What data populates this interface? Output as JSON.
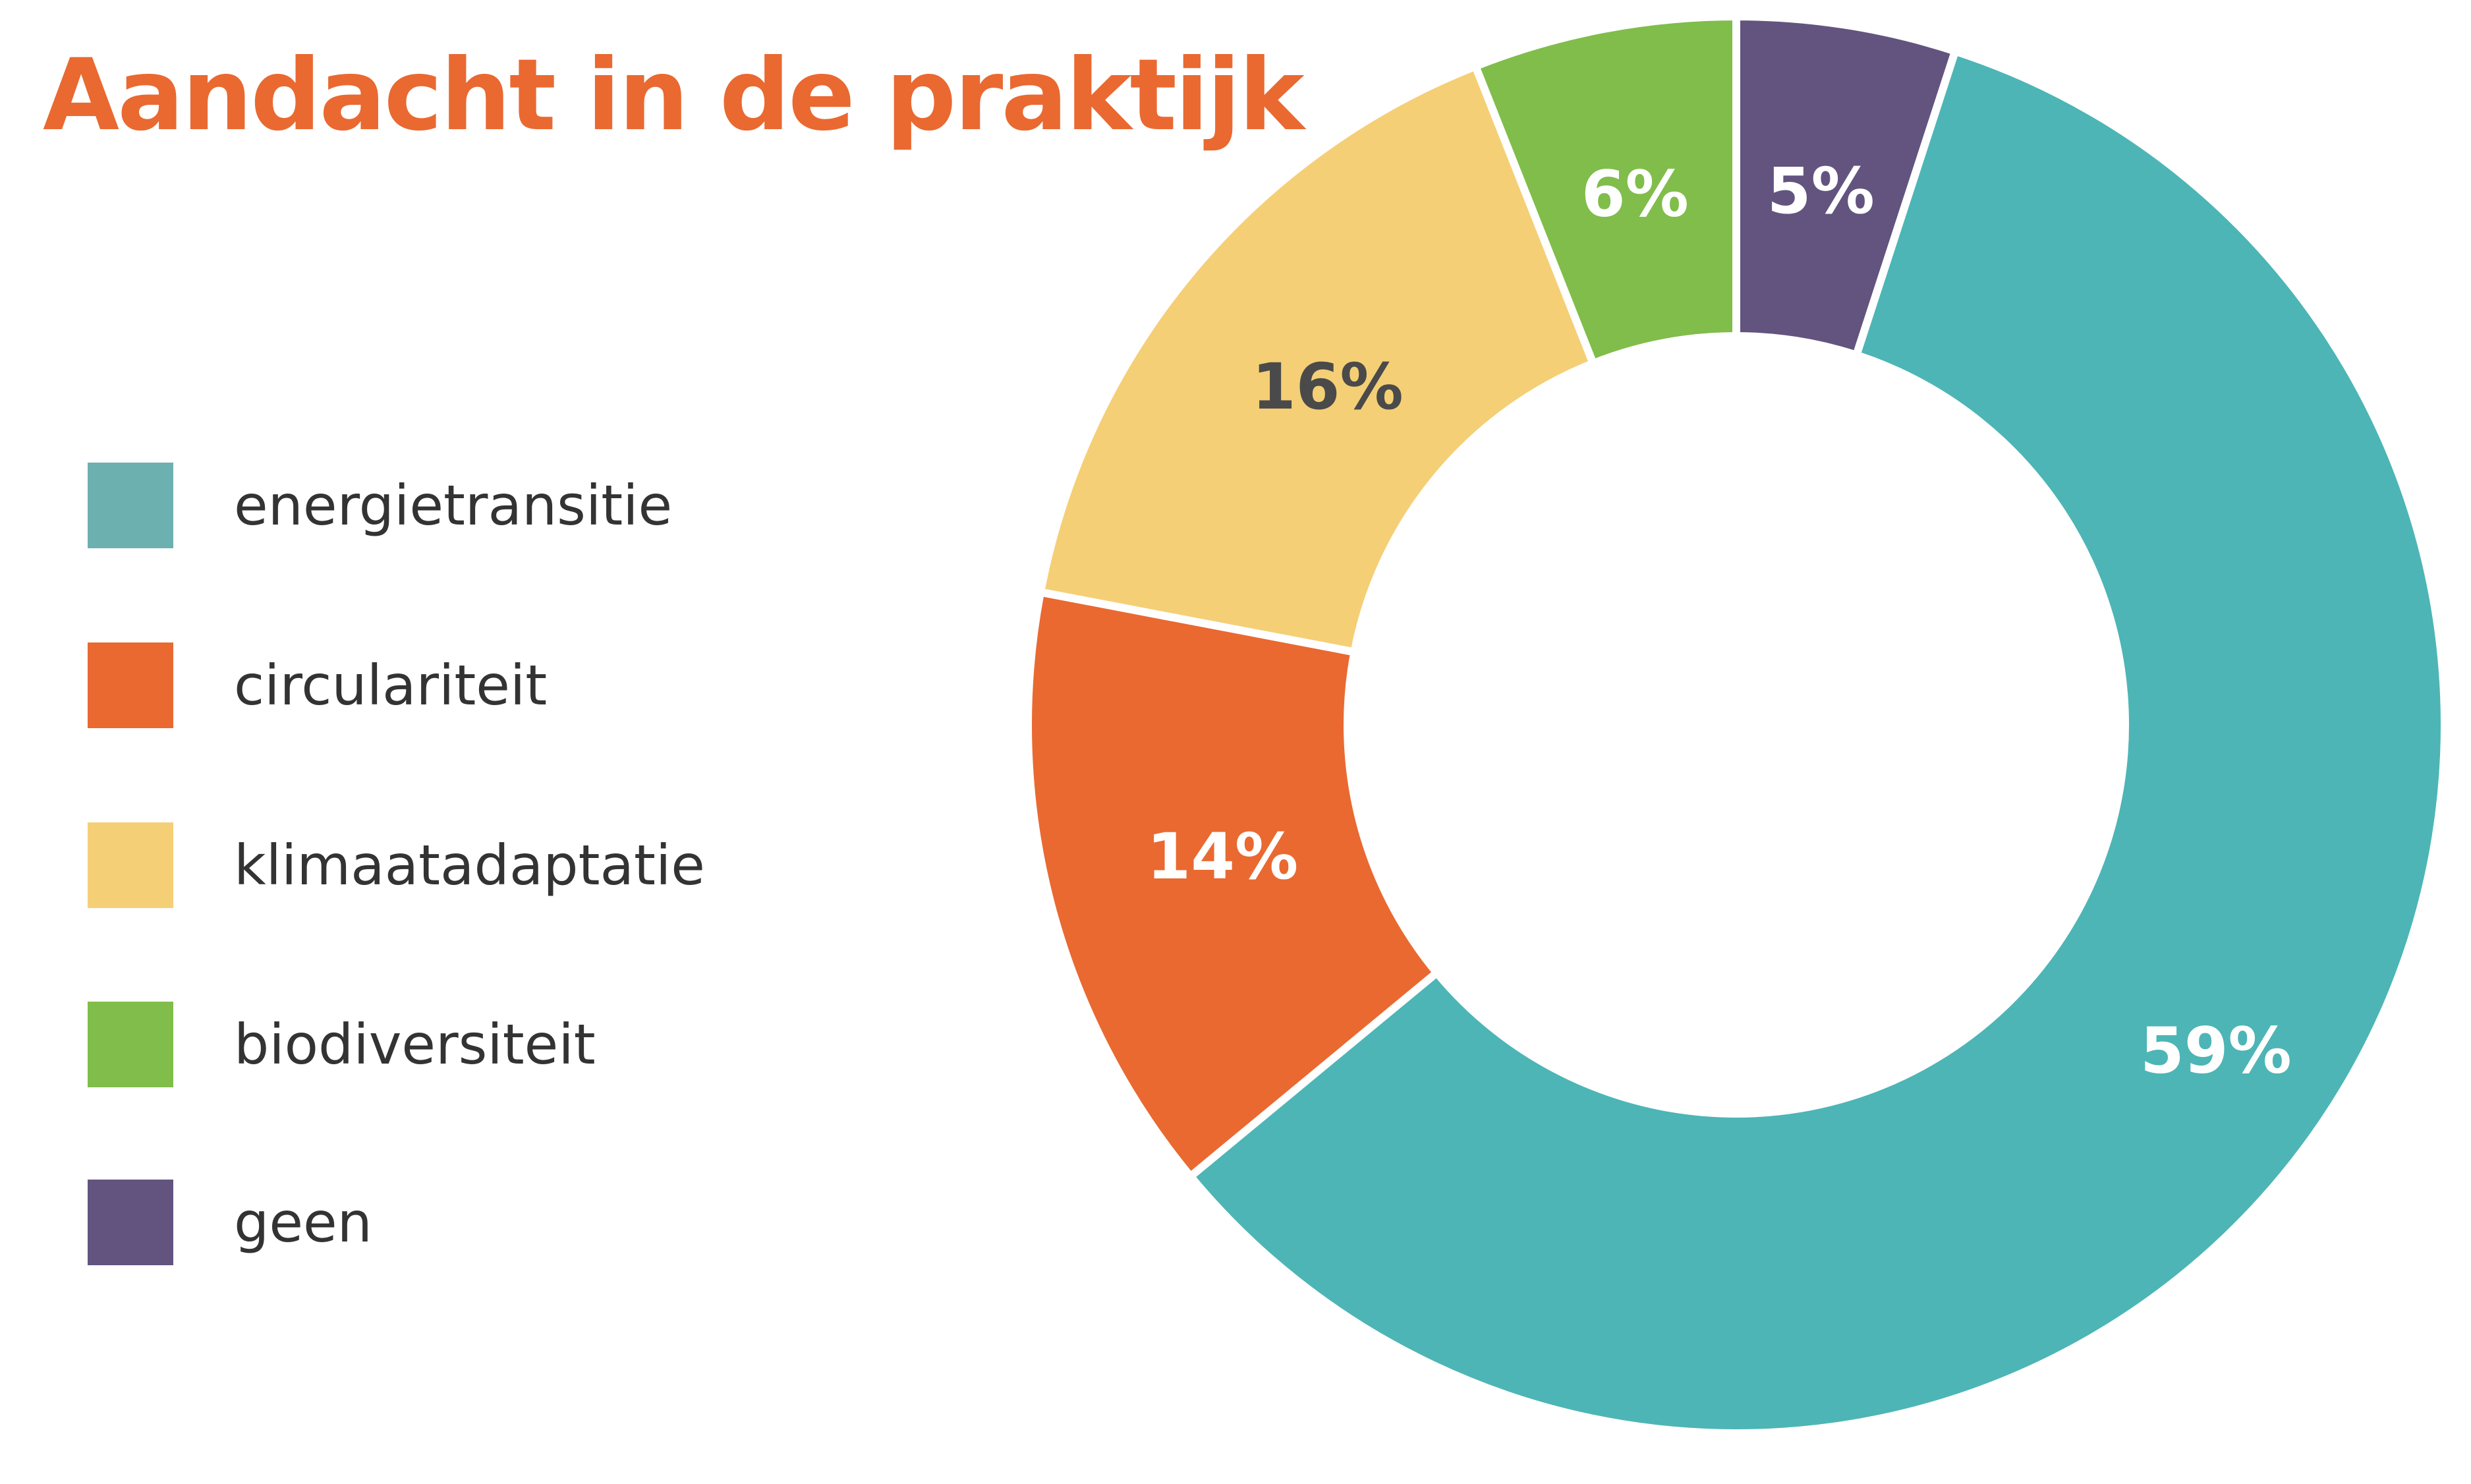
{
  "chart_data": {
    "type": "pie",
    "title": "Aandacht in de praktijk",
    "categories": [
      "energietransitie",
      "circulariteit",
      "klimaatadaptatie",
      "biodiversiteit",
      "geen"
    ],
    "values": [
      59,
      14,
      16,
      6,
      5
    ],
    "labels": [
      "59%",
      "14%",
      "16%",
      "6%",
      "5%"
    ],
    "unit": "%",
    "donut": true,
    "legend_placement": "left",
    "slice_colors": [
      "#4db5b5",
      "#e96931",
      "#f5cf76",
      "#80bd4a",
      "#62547f"
    ],
    "legend_swatch_colors": [
      "#6db0b0",
      "#e96931",
      "#f5cf76",
      "#80bd4a",
      "#62547f"
    ],
    "label_colors": [
      "#ffffff",
      "#ffffff",
      "#4a4a4a",
      "#ffffff",
      "#ffffff"
    ]
  },
  "colors": {
    "title": "#e96931",
    "legend_text": "#333333",
    "separator": "#ffffff"
  }
}
